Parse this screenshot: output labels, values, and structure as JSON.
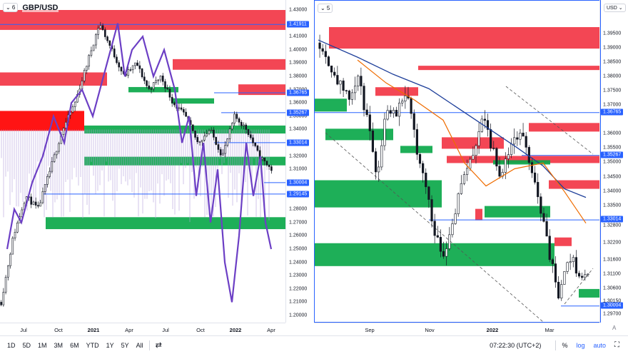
{
  "left_chart": {
    "layout_chip": "⌄ 6",
    "symbol": "GBP/USD",
    "y_ticks": [
      "1.43000",
      "1.42000",
      "1.41000",
      "1.40000",
      "1.39000",
      "1.38000",
      "1.37000",
      "1.36000",
      "1.35000",
      "1.34000",
      "1.33000",
      "1.32000",
      "1.31000",
      "1.30000",
      "1.29000",
      "1.28000",
      "1.27000",
      "1.26000",
      "1.25000",
      "1.24000",
      "1.23000",
      "1.22000",
      "1.21000",
      "1.20000"
    ],
    "price_labels": [
      "1.41911",
      "1.36765",
      "1.35267",
      "1.33014",
      "1.30004",
      "1.29145"
    ],
    "x_ticks": [
      "Jul",
      "Oct",
      "2021",
      "Apr",
      "Jul",
      "Oct",
      "2022",
      "Apr"
    ],
    "zones": [
      {
        "color": "#f23645",
        "low": 1.415,
        "high": 1.43,
        "from": 0,
        "to": 400
      },
      {
        "color": "#f23645",
        "low": 1.385,
        "high": 1.393,
        "from": 242,
        "to": 400
      },
      {
        "color": "#f23645",
        "low": 1.373,
        "high": 1.383,
        "from": 0,
        "to": 150
      },
      {
        "color": "#f23645",
        "low": 1.366,
        "high": 1.374,
        "from": 334,
        "to": 400
      },
      {
        "color": "#ff0000",
        "low": 1.339,
        "high": 1.354,
        "from": 0,
        "to": 118
      },
      {
        "color": "#0ba84a",
        "low": 1.368,
        "high": 1.372,
        "from": 180,
        "to": 250
      },
      {
        "color": "#0ba84a",
        "low": 1.3595,
        "high": 1.3635,
        "from": 240,
        "to": 300
      },
      {
        "color": "#0ba84a",
        "low": 1.337,
        "high": 1.343,
        "from": 118,
        "to": 400
      },
      {
        "color": "#0ba84a",
        "low": 1.313,
        "high": 1.3195,
        "from": 118,
        "to": 400
      },
      {
        "color": "#0ba84a",
        "low": 1.265,
        "high": 1.274,
        "from": 64,
        "to": 400
      }
    ]
  },
  "right_chart": {
    "layout_chip": "⌄ 5",
    "currency_chip": "USD ⌄",
    "y_ticks": [
      "1.39500",
      "1.39000",
      "1.38500",
      "1.38000",
      "1.37500",
      "1.37000",
      "1.36000",
      "1.35500",
      "1.35000",
      "1.34500",
      "1.34000",
      "1.33500",
      "1.32800",
      "1.32200",
      "1.31600",
      "1.31100",
      "1.30600",
      "1.30150",
      "1.29700"
    ],
    "price_labels": [
      "1.36765",
      "1.35267",
      "1.33014",
      "1.30004"
    ],
    "x_ticks": [
      "Sep",
      "Nov",
      "2022",
      "Mar"
    ],
    "auto_label": "A",
    "zones": [
      {
        "color": "#f23645",
        "low": 1.39,
        "high": 1.3975,
        "from": 20,
        "to": 400
      },
      {
        "color": "#f23645",
        "low": 1.3825,
        "high": 1.384,
        "from": 145,
        "to": 400
      },
      {
        "color": "#f23645",
        "low": 1.3735,
        "high": 1.3765,
        "from": 85,
        "to": 145
      },
      {
        "color": "#f23645",
        "low": 1.361,
        "high": 1.364,
        "from": 300,
        "to": 400
      },
      {
        "color": "#f23645",
        "low": 1.355,
        "high": 1.359,
        "from": 178,
        "to": 265
      },
      {
        "color": "#f23645",
        "low": 1.35,
        "high": 1.3525,
        "from": 185,
        "to": 400
      },
      {
        "color": "#f23645",
        "low": 1.341,
        "high": 1.344,
        "from": 328,
        "to": 400
      },
      {
        "color": "#f23645",
        "low": 1.33,
        "high": 1.334,
        "from": 225,
        "to": 235
      },
      {
        "color": "#f23645",
        "low": 1.321,
        "high": 1.324,
        "from": 336,
        "to": 360
      },
      {
        "color": "#0ba84a",
        "low": 1.368,
        "high": 1.3725,
        "from": 0,
        "to": 45
      },
      {
        "color": "#0ba84a",
        "low": 1.358,
        "high": 1.362,
        "from": 15,
        "to": 110
      },
      {
        "color": "#0ba84a",
        "low": 1.3535,
        "high": 1.356,
        "from": 120,
        "to": 165
      },
      {
        "color": "#0ba84a",
        "low": 1.3495,
        "high": 1.351,
        "from": 250,
        "to": 330
      },
      {
        "color": "#0ba84a",
        "low": 1.3345,
        "high": 1.344,
        "from": 0,
        "to": 178
      },
      {
        "color": "#0ba84a",
        "low": 1.331,
        "high": 1.335,
        "from": 238,
        "to": 330
      },
      {
        "color": "#0ba84a",
        "low": 1.314,
        "high": 1.322,
        "from": 0,
        "to": 336
      },
      {
        "color": "#0ba84a",
        "low": 1.303,
        "high": 1.306,
        "from": 370,
        "to": 400
      }
    ]
  },
  "bottom_bar": {
    "ranges": [
      "1D",
      "5D",
      "1M",
      "3M",
      "6M",
      "YTD",
      "1Y",
      "5Y",
      "All"
    ],
    "compare_icon": "compare-icon",
    "clock": "07:22:30 (UTC+2)",
    "percent": "%",
    "log": "log",
    "auto": "auto",
    "fullscreen_icon": "fullscreen-icon"
  }
}
